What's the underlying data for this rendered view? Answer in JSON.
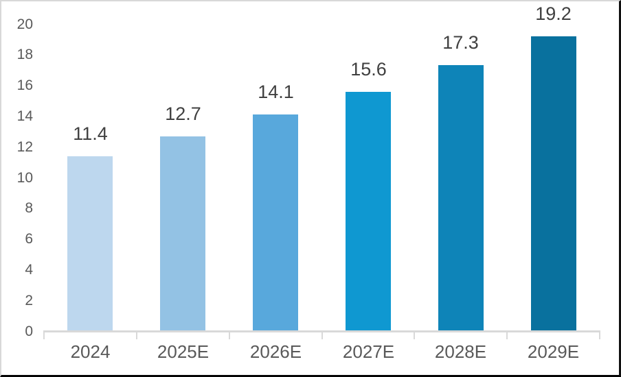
{
  "chart_data": {
    "type": "bar",
    "categories": [
      "2024",
      "2025E",
      "2026E",
      "2027E",
      "2028E",
      "2029E"
    ],
    "values": [
      11.4,
      12.7,
      14.1,
      15.6,
      17.3,
      19.2
    ],
    "value_labels": [
      "11.4",
      "12.7",
      "14.1",
      "15.6",
      "17.3",
      "19.2"
    ],
    "bar_colors": [
      "#bdd7ee",
      "#93c2e4",
      "#58a8dc",
      "#0f98d1",
      "#0e84b8",
      "#09719e"
    ],
    "title": "",
    "xlabel": "",
    "ylabel": "",
    "ylim": [
      0,
      20
    ],
    "yticks": [
      0,
      2,
      4,
      6,
      8,
      10,
      12,
      14,
      16,
      18,
      20
    ],
    "grid": false,
    "legend_position": "none"
  },
  "style": {
    "background": "#ffffff",
    "axis_line_color": "#d9d9d9",
    "axis_label_color": "#595959",
    "value_label_color": "#404040"
  }
}
